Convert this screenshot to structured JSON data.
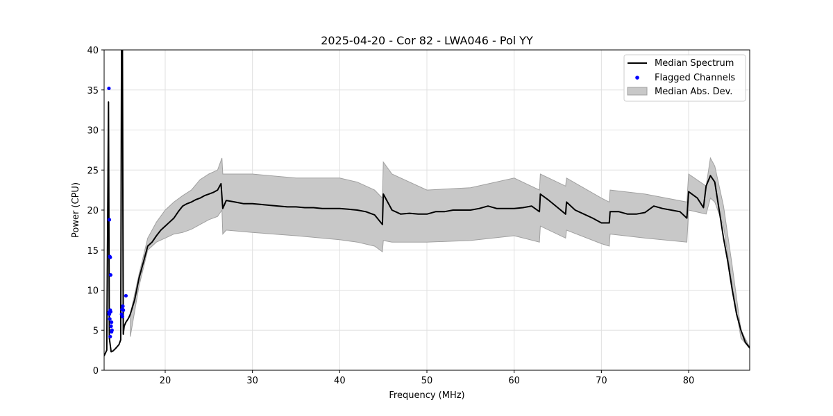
{
  "chart_data": {
    "type": "line",
    "title": "2025-04-20 - Cor 82 - LWA046 - Pol YY",
    "xlabel": "Frequency (MHz)",
    "ylabel": "Power (CPU)",
    "xlim": [
      13.0,
      87.0
    ],
    "ylim": [
      0,
      40
    ],
    "xticks": [
      20,
      30,
      40,
      50,
      60,
      70,
      80
    ],
    "yticks": [
      0,
      5,
      10,
      15,
      20,
      25,
      30,
      35,
      40
    ],
    "grid": true,
    "legend": {
      "placement": "top-right",
      "entries": [
        {
          "label": "Median Spectrum",
          "kind": "line",
          "color": "#000000"
        },
        {
          "label": "Flagged Channels",
          "kind": "marker",
          "color": "#0000ff"
        },
        {
          "label": "Median Abs. Dev.",
          "kind": "band",
          "color": "#c8c8c8"
        }
      ]
    },
    "colors": {
      "line": "#000000",
      "markers": "#0000ff",
      "band": "#c8c8c8",
      "band_edge": "#a0a0a0"
    },
    "series": [
      {
        "name": "Median Spectrum",
        "x": [
          13.0,
          13.3,
          13.5,
          13.6,
          13.8,
          14.0,
          14.3,
          14.7,
          14.9,
          15.0,
          15.1,
          15.2,
          15.3,
          15.5,
          15.8,
          16.0,
          16.5,
          17.0,
          17.5,
          18.0,
          18.5,
          19.0,
          19.5,
          20.0,
          20.5,
          21.0,
          21.5,
          22.0,
          22.5,
          23.0,
          23.5,
          24.0,
          24.5,
          25.0,
          25.5,
          26.0,
          26.4,
          26.6,
          27.0,
          28.0,
          29.0,
          30.0,
          31.0,
          32.0,
          33.0,
          34.0,
          35.0,
          36.0,
          37.0,
          38.0,
          39.0,
          40.0,
          41.0,
          42.0,
          43.0,
          44.0,
          44.9,
          45.0,
          46.0,
          47.0,
          48.0,
          49.0,
          50.0,
          51.0,
          52.0,
          53.0,
          54.0,
          55.0,
          56.0,
          57.0,
          58.0,
          59.0,
          60.0,
          61.0,
          62.0,
          62.9,
          63.0,
          64.0,
          65.0,
          65.9,
          66.0,
          67.0,
          68.0,
          69.0,
          70.0,
          70.9,
          71.0,
          72.0,
          73.0,
          74.0,
          75.0,
          76.0,
          77.0,
          78.0,
          79.0,
          79.8,
          80.0,
          81.0,
          81.7,
          82.0,
          82.5,
          83.0,
          83.5,
          84.0,
          84.5,
          85.0,
          85.5,
          86.0,
          86.5,
          87.0
        ],
        "y": [
          1.8,
          2.5,
          33.5,
          4.0,
          2.3,
          2.4,
          2.7,
          3.2,
          3.8,
          40.0,
          40.0,
          4.5,
          5.5,
          6.0,
          6.5,
          7.0,
          8.8,
          11.5,
          13.5,
          15.5,
          16.0,
          16.8,
          17.5,
          18.0,
          18.5,
          19.0,
          19.8,
          20.5,
          20.8,
          21.0,
          21.3,
          21.5,
          21.8,
          22.0,
          22.2,
          22.5,
          23.3,
          20.2,
          21.2,
          21.0,
          20.8,
          20.8,
          20.7,
          20.6,
          20.5,
          20.4,
          20.4,
          20.3,
          20.3,
          20.2,
          20.2,
          20.2,
          20.1,
          20.0,
          19.8,
          19.4,
          18.2,
          22.0,
          20.0,
          19.5,
          19.6,
          19.5,
          19.5,
          19.8,
          19.8,
          20.0,
          20.0,
          20.0,
          20.2,
          20.5,
          20.2,
          20.2,
          20.2,
          20.3,
          20.5,
          19.8,
          22.0,
          21.2,
          20.3,
          19.5,
          21.0,
          20.0,
          19.5,
          19.0,
          18.4,
          18.4,
          19.8,
          19.8,
          19.5,
          19.5,
          19.7,
          20.5,
          20.2,
          20.0,
          19.8,
          19.0,
          22.3,
          21.5,
          20.3,
          23.0,
          24.3,
          23.5,
          20.0,
          16.5,
          13.5,
          10.0,
          7.0,
          5.0,
          3.5,
          2.8
        ]
      },
      {
        "name": "Median Abs. Dev.",
        "x": [
          16.0,
          17.0,
          18.0,
          19.0,
          20.0,
          21.0,
          22.0,
          23.0,
          24.0,
          25.0,
          26.0,
          26.5,
          26.6,
          27.0,
          30.0,
          35.0,
          40.0,
          42.0,
          44.0,
          44.9,
          45.0,
          46.0,
          50.0,
          55.0,
          60.0,
          62.9,
          63.0,
          65.9,
          66.0,
          70.0,
          70.9,
          71.0,
          75.0,
          79.8,
          80.0,
          82.0,
          82.5,
          83.0,
          84.0,
          85.0,
          86.0,
          87.0
        ],
        "upper": [
          7.0,
          12.0,
          16.5,
          18.5,
          20.0,
          21.0,
          21.8,
          22.5,
          23.8,
          24.5,
          25.0,
          26.5,
          24.5,
          24.5,
          24.5,
          24.0,
          24.0,
          23.5,
          22.5,
          21.5,
          26.0,
          24.5,
          22.5,
          22.8,
          24.0,
          22.5,
          24.5,
          23.0,
          24.0,
          21.5,
          21.0,
          22.5,
          22.0,
          21.0,
          24.5,
          23.0,
          26.5,
          25.5,
          20.5,
          13.0,
          5.0,
          2.9
        ],
        "lower": [
          4.2,
          10.5,
          15.0,
          16.0,
          16.5,
          17.0,
          17.2,
          17.6,
          18.2,
          18.8,
          19.2,
          20.0,
          17.0,
          17.5,
          17.2,
          16.8,
          16.3,
          16.0,
          15.5,
          14.8,
          16.2,
          16.0,
          16.0,
          16.2,
          16.8,
          16.0,
          18.0,
          16.5,
          17.5,
          15.8,
          15.5,
          17.0,
          16.5,
          16.0,
          20.0,
          19.5,
          21.5,
          21.0,
          18.0,
          10.5,
          4.0,
          2.7
        ]
      }
    ],
    "flagged_channels": {
      "name": "Flagged Channels",
      "x": [
        13.55,
        13.6,
        13.65,
        13.7,
        13.75,
        13.55,
        13.6,
        13.7,
        13.75,
        13.65,
        13.85,
        13.8,
        13.9,
        13.85,
        13.7,
        15.0,
        15.05,
        15.15,
        15.2,
        15.1,
        15.5
      ],
      "y": [
        35.2,
        18.8,
        14.2,
        14.1,
        11.9,
        7.2,
        7.0,
        7.5,
        7.3,
        6.4,
        6.0,
        5.5,
        5.0,
        4.8,
        4.2,
        7.0,
        7.6,
        8.0,
        7.5,
        6.7,
        9.3
      ]
    }
  }
}
